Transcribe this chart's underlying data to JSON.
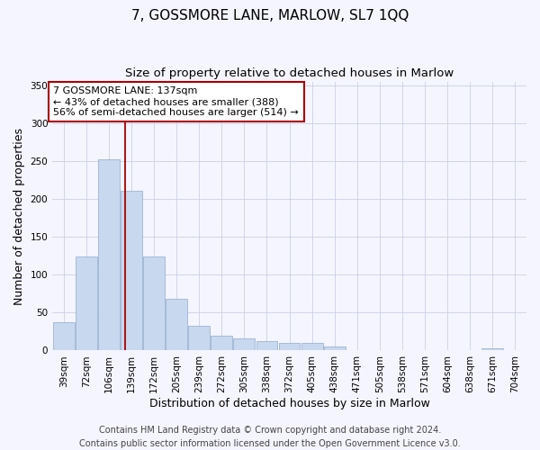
{
  "title": "7, GOSSMORE LANE, MARLOW, SL7 1QQ",
  "subtitle": "Size of property relative to detached houses in Marlow",
  "xlabel": "Distribution of detached houses by size in Marlow",
  "ylabel": "Number of detached properties",
  "bar_color": "#c8d8ee",
  "bar_edge_color": "#9ab4d4",
  "categories": [
    "39sqm",
    "72sqm",
    "106sqm",
    "139sqm",
    "172sqm",
    "205sqm",
    "239sqm",
    "272sqm",
    "305sqm",
    "338sqm",
    "372sqm",
    "405sqm",
    "438sqm",
    "471sqm",
    "505sqm",
    "538sqm",
    "571sqm",
    "604sqm",
    "638sqm",
    "671sqm",
    "704sqm"
  ],
  "values": [
    37,
    124,
    252,
    211,
    124,
    68,
    33,
    20,
    16,
    13,
    10,
    10,
    5,
    1,
    0,
    0,
    0,
    0,
    0,
    3,
    0
  ],
  "ylim": [
    0,
    355
  ],
  "yticks": [
    0,
    50,
    100,
    150,
    200,
    250,
    300,
    350
  ],
  "property_line_x": 2.72,
  "property_line_color": "#aa0000",
  "annotation_text": "7 GOSSMORE LANE: 137sqm\n← 43% of detached houses are smaller (388)\n56% of semi-detached houses are larger (514) →",
  "annotation_box_color": "white",
  "annotation_box_edge": "#aa0000",
  "footer_line1": "Contains HM Land Registry data © Crown copyright and database right 2024.",
  "footer_line2": "Contains public sector information licensed under the Open Government Licence v3.0.",
  "background_color": "#f5f5ff",
  "grid_color": "#c8d0e8",
  "title_fontsize": 11,
  "subtitle_fontsize": 9.5,
  "axis_label_fontsize": 9,
  "tick_fontsize": 7.5,
  "footer_fontsize": 7
}
